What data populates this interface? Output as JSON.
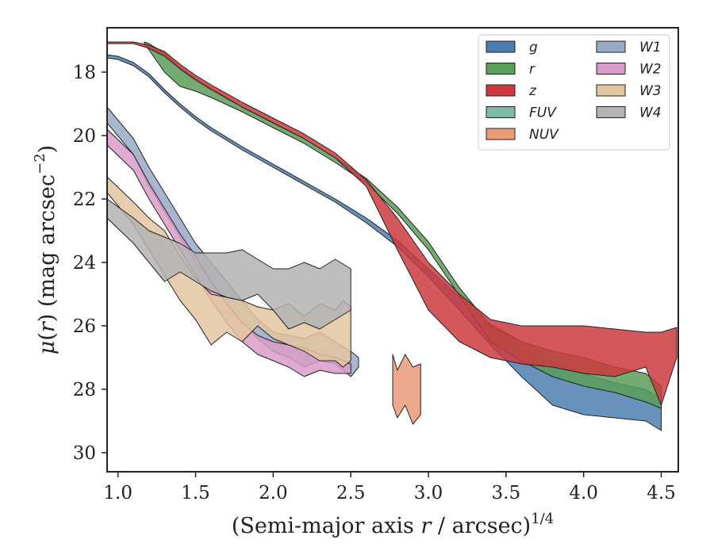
{
  "chart_data": {
    "type": "area",
    "xlabel": "(Semi-major axis r / arcsec)^{1/4}",
    "ylabel": "μ(r) (mag arcsec^{−2})",
    "xlim": [
      0.93,
      4.61
    ],
    "ylim": [
      30.6,
      16.6
    ],
    "y_inverted": true,
    "xticks": [
      1.0,
      1.5,
      2.0,
      2.5,
      3.0,
      3.5,
      4.0,
      4.5
    ],
    "yticks": [
      18,
      20,
      22,
      24,
      26,
      28,
      30
    ],
    "legend_position": "top-right",
    "legend_columns": 2,
    "series": [
      {
        "name": "g",
        "color": "#4c7fb0",
        "upper": [
          [
            0.93,
            17.45
          ],
          [
            1.0,
            17.5
          ],
          [
            1.1,
            17.7
          ],
          [
            1.2,
            18.05
          ],
          [
            1.3,
            18.55
          ],
          [
            1.4,
            19.0
          ],
          [
            1.5,
            19.4
          ],
          [
            1.6,
            19.75
          ],
          [
            1.7,
            20.05
          ],
          [
            1.8,
            20.35
          ],
          [
            2.0,
            20.9
          ],
          [
            2.2,
            21.45
          ],
          [
            2.4,
            22.0
          ],
          [
            2.6,
            22.6
          ],
          [
            2.8,
            23.3
          ],
          [
            3.0,
            24.2
          ],
          [
            3.2,
            25.1
          ],
          [
            3.4,
            25.95
          ],
          [
            3.6,
            26.5
          ],
          [
            3.8,
            27.1
          ],
          [
            4.0,
            27.5
          ],
          [
            4.2,
            27.8
          ],
          [
            4.4,
            28.0
          ],
          [
            4.5,
            28.3
          ]
        ],
        "lower": [
          [
            4.5,
            29.3
          ],
          [
            4.4,
            29.0
          ],
          [
            4.2,
            28.9
          ],
          [
            4.0,
            28.8
          ],
          [
            3.8,
            28.5
          ],
          [
            3.6,
            27.6
          ],
          [
            3.4,
            26.6
          ],
          [
            3.2,
            25.5
          ],
          [
            3.0,
            24.45
          ],
          [
            2.8,
            23.5
          ],
          [
            2.6,
            22.75
          ],
          [
            2.4,
            22.1
          ],
          [
            2.2,
            21.55
          ],
          [
            2.0,
            21.0
          ],
          [
            1.8,
            20.45
          ],
          [
            1.7,
            20.15
          ],
          [
            1.6,
            19.85
          ],
          [
            1.5,
            19.5
          ],
          [
            1.4,
            19.1
          ],
          [
            1.3,
            18.65
          ],
          [
            1.2,
            18.15
          ],
          [
            1.1,
            17.8
          ],
          [
            1.0,
            17.6
          ],
          [
            0.93,
            17.55
          ]
        ]
      },
      {
        "name": "r",
        "color": "#5a9e5a",
        "upper": [
          [
            1.17,
            17.05
          ],
          [
            1.2,
            17.1
          ],
          [
            1.3,
            17.4
          ],
          [
            1.4,
            17.85
          ],
          [
            1.5,
            18.2
          ],
          [
            1.6,
            18.5
          ],
          [
            1.8,
            19.1
          ],
          [
            2.0,
            19.6
          ],
          [
            2.2,
            20.1
          ],
          [
            2.4,
            20.7
          ],
          [
            2.6,
            21.35
          ],
          [
            2.8,
            22.25
          ],
          [
            3.0,
            23.35
          ],
          [
            3.2,
            24.8
          ],
          [
            3.4,
            26.0
          ],
          [
            3.6,
            26.5
          ],
          [
            3.8,
            26.8
          ],
          [
            4.0,
            27.0
          ],
          [
            4.2,
            27.3
          ],
          [
            4.4,
            27.5
          ],
          [
            4.5,
            27.9
          ]
        ],
        "lower": [
          [
            4.5,
            28.6
          ],
          [
            4.4,
            28.4
          ],
          [
            4.2,
            28.1
          ],
          [
            4.0,
            27.9
          ],
          [
            3.8,
            27.6
          ],
          [
            3.6,
            27.1
          ],
          [
            3.4,
            26.5
          ],
          [
            3.2,
            25.05
          ],
          [
            3.0,
            23.6
          ],
          [
            2.8,
            22.45
          ],
          [
            2.6,
            21.5
          ],
          [
            2.4,
            20.85
          ],
          [
            2.2,
            20.25
          ],
          [
            2.0,
            19.75
          ],
          [
            1.8,
            19.25
          ],
          [
            1.6,
            18.8
          ],
          [
            1.5,
            18.6
          ],
          [
            1.4,
            18.45
          ],
          [
            1.3,
            18.0
          ],
          [
            1.2,
            17.3
          ],
          [
            1.17,
            17.1
          ]
        ]
      },
      {
        "name": "z",
        "color": "#cc3a3f",
        "upper": [
          [
            0.93,
            17.05
          ],
          [
            1.1,
            17.05
          ],
          [
            1.2,
            17.15
          ],
          [
            1.3,
            17.35
          ],
          [
            1.4,
            17.75
          ],
          [
            1.5,
            18.1
          ],
          [
            1.6,
            18.4
          ],
          [
            1.8,
            18.95
          ],
          [
            2.0,
            19.45
          ],
          [
            2.2,
            19.95
          ],
          [
            2.4,
            20.55
          ],
          [
            2.6,
            21.4
          ],
          [
            2.8,
            22.6
          ],
          [
            3.0,
            24.0
          ],
          [
            3.2,
            25.0
          ],
          [
            3.4,
            25.8
          ],
          [
            3.6,
            26.0
          ],
          [
            3.8,
            26.0
          ],
          [
            4.0,
            26.0
          ],
          [
            4.2,
            26.1
          ],
          [
            4.4,
            26.2
          ],
          [
            4.5,
            26.2
          ],
          [
            4.6,
            26.05
          ]
        ],
        "lower": [
          [
            4.6,
            27.0
          ],
          [
            4.5,
            28.5
          ],
          [
            4.4,
            27.3
          ],
          [
            4.2,
            27.6
          ],
          [
            4.0,
            27.5
          ],
          [
            3.8,
            27.3
          ],
          [
            3.6,
            27.2
          ],
          [
            3.4,
            27.0
          ],
          [
            3.2,
            26.5
          ],
          [
            3.0,
            25.5
          ],
          [
            2.8,
            23.6
          ],
          [
            2.6,
            21.6
          ],
          [
            2.4,
            20.7
          ],
          [
            2.2,
            20.1
          ],
          [
            2.0,
            19.6
          ],
          [
            1.8,
            19.1
          ],
          [
            1.6,
            18.55
          ],
          [
            1.5,
            18.25
          ],
          [
            1.4,
            17.9
          ],
          [
            1.3,
            17.5
          ],
          [
            1.2,
            17.25
          ],
          [
            1.1,
            17.1
          ],
          [
            0.93,
            17.1
          ]
        ]
      },
      {
        "name": "FUV",
        "color": "#7cbca3",
        "upper": [],
        "lower": []
      },
      {
        "name": "NUV",
        "color": "#eb9a78",
        "upper": [
          [
            2.77,
            26.9
          ],
          [
            2.8,
            27.4
          ],
          [
            2.85,
            26.9
          ],
          [
            2.9,
            27.3
          ],
          [
            2.95,
            27.2
          ]
        ],
        "lower": [
          [
            2.95,
            28.8
          ],
          [
            2.9,
            29.1
          ],
          [
            2.85,
            28.5
          ],
          [
            2.8,
            28.9
          ],
          [
            2.77,
            28.5
          ]
        ]
      },
      {
        "name": "W1",
        "color": "#9aa9c7",
        "upper": [
          [
            0.93,
            19.1
          ],
          [
            1.1,
            20.1
          ],
          [
            1.2,
            21.0
          ],
          [
            1.3,
            21.8
          ],
          [
            1.4,
            22.6
          ],
          [
            1.5,
            23.4
          ],
          [
            1.6,
            24.0
          ],
          [
            1.7,
            24.6
          ],
          [
            1.8,
            25.2
          ],
          [
            1.9,
            25.8
          ],
          [
            2.0,
            26.2
          ],
          [
            2.1,
            26.3
          ],
          [
            2.2,
            26.4
          ],
          [
            2.3,
            26.2
          ],
          [
            2.4,
            26.5
          ],
          [
            2.5,
            26.8
          ],
          [
            2.55,
            27.0
          ]
        ],
        "lower": [
          [
            2.55,
            27.3
          ],
          [
            2.5,
            27.6
          ],
          [
            2.4,
            27.2
          ],
          [
            2.3,
            27.1
          ],
          [
            2.2,
            27.3
          ],
          [
            2.1,
            27.0
          ],
          [
            2.0,
            26.8
          ],
          [
            1.9,
            26.4
          ],
          [
            1.8,
            25.9
          ],
          [
            1.7,
            25.3
          ],
          [
            1.6,
            24.6
          ],
          [
            1.5,
            24.0
          ],
          [
            1.4,
            23.2
          ],
          [
            1.3,
            22.4
          ],
          [
            1.2,
            21.6
          ],
          [
            1.1,
            20.6
          ],
          [
            0.93,
            19.6
          ]
        ]
      },
      {
        "name": "W2",
        "color": "#da9cc8",
        "upper": [
          [
            0.93,
            19.8
          ],
          [
            1.1,
            20.6
          ],
          [
            1.2,
            21.5
          ],
          [
            1.3,
            22.3
          ],
          [
            1.4,
            23.1
          ],
          [
            1.5,
            23.8
          ],
          [
            1.6,
            24.6
          ],
          [
            1.7,
            25.3
          ],
          [
            1.8,
            25.9
          ],
          [
            1.9,
            26.3
          ],
          [
            2.0,
            26.5
          ],
          [
            2.1,
            26.6
          ],
          [
            2.2,
            26.7
          ],
          [
            2.3,
            26.9
          ],
          [
            2.4,
            27.0
          ],
          [
            2.5,
            27.2
          ]
        ],
        "lower": [
          [
            2.5,
            27.5
          ],
          [
            2.4,
            27.5
          ],
          [
            2.3,
            27.4
          ],
          [
            2.2,
            27.6
          ],
          [
            2.1,
            27.3
          ],
          [
            2.0,
            27.1
          ],
          [
            1.9,
            26.9
          ],
          [
            1.8,
            26.5
          ],
          [
            1.7,
            25.9
          ],
          [
            1.6,
            25.2
          ],
          [
            1.5,
            24.4
          ],
          [
            1.4,
            23.6
          ],
          [
            1.3,
            22.8
          ],
          [
            1.2,
            22.0
          ],
          [
            1.1,
            21.1
          ],
          [
            0.93,
            20.3
          ]
        ]
      },
      {
        "name": "W3",
        "color": "#e3c6a0",
        "upper": [
          [
            0.93,
            21.3
          ],
          [
            1.1,
            22.1
          ],
          [
            1.2,
            22.6
          ],
          [
            1.3,
            23.0
          ],
          [
            1.4,
            23.8
          ],
          [
            1.5,
            24.5
          ],
          [
            1.6,
            25.0
          ],
          [
            1.7,
            25.1
          ],
          [
            1.8,
            25.2
          ],
          [
            1.9,
            25.4
          ],
          [
            2.0,
            25.5
          ],
          [
            2.1,
            25.3
          ],
          [
            2.2,
            25.7
          ],
          [
            2.3,
            25.3
          ],
          [
            2.4,
            25.5
          ],
          [
            2.45,
            25.2
          ],
          [
            2.5,
            25.4
          ]
        ],
        "lower": [
          [
            2.5,
            27.1
          ],
          [
            2.45,
            27.3
          ],
          [
            2.4,
            27.1
          ],
          [
            2.3,
            27.1
          ],
          [
            2.2,
            26.8
          ],
          [
            2.1,
            26.6
          ],
          [
            2.0,
            26.4
          ],
          [
            1.9,
            26.0
          ],
          [
            1.8,
            26.5
          ],
          [
            1.7,
            26.2
          ],
          [
            1.6,
            26.6
          ],
          [
            1.5,
            25.8
          ],
          [
            1.4,
            25.2
          ],
          [
            1.3,
            24.4
          ],
          [
            1.2,
            23.6
          ],
          [
            1.1,
            22.8
          ],
          [
            0.93,
            21.8
          ]
        ]
      },
      {
        "name": "W4",
        "color": "#b3b3b3",
        "upper": [
          [
            0.93,
            22.0
          ],
          [
            1.1,
            22.6
          ],
          [
            1.2,
            23.0
          ],
          [
            1.3,
            23.2
          ],
          [
            1.4,
            23.4
          ],
          [
            1.5,
            23.7
          ],
          [
            1.6,
            23.7
          ],
          [
            1.7,
            23.7
          ],
          [
            1.8,
            23.6
          ],
          [
            1.9,
            23.9
          ],
          [
            2.0,
            24.2
          ],
          [
            2.1,
            24.2
          ],
          [
            2.2,
            24.0
          ],
          [
            2.3,
            24.2
          ],
          [
            2.4,
            23.9
          ],
          [
            2.5,
            24.2
          ]
        ],
        "lower": [
          [
            2.5,
            25.5
          ],
          [
            2.4,
            25.8
          ],
          [
            2.3,
            26.1
          ],
          [
            2.2,
            25.9
          ],
          [
            2.1,
            26.1
          ],
          [
            2.0,
            25.5
          ],
          [
            1.9,
            25.0
          ],
          [
            1.8,
            25.2
          ],
          [
            1.7,
            25.1
          ],
          [
            1.6,
            24.9
          ],
          [
            1.5,
            24.6
          ],
          [
            1.4,
            24.3
          ],
          [
            1.3,
            24.6
          ],
          [
            1.2,
            24.0
          ],
          [
            1.1,
            23.4
          ],
          [
            0.93,
            22.6
          ]
        ]
      }
    ]
  }
}
